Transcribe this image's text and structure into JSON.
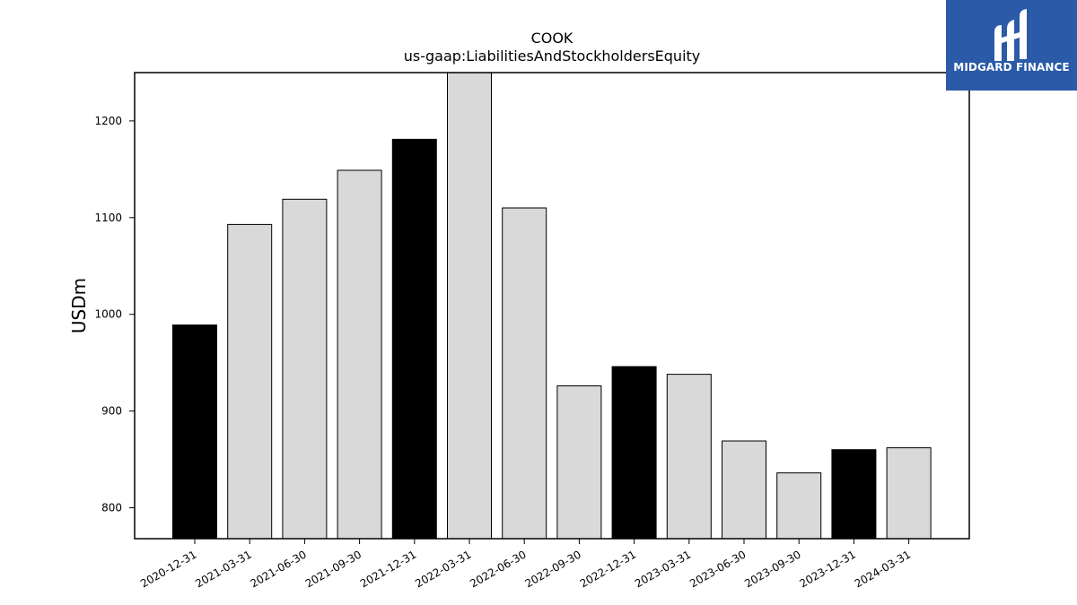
{
  "logo": {
    "text": "MIDGARD FINANCE",
    "background_color": "#2b5aa8",
    "icon": "midgard-logo-icon"
  },
  "chart_data": {
    "type": "bar",
    "title": "COOK",
    "subtitle": "us-gaap:LiabilitiesAndStockholdersEquity",
    "xlabel": "",
    "ylabel": "USDm",
    "ylim": [
      768,
      1250
    ],
    "yticks": [
      800,
      900,
      1000,
      1100,
      1200
    ],
    "ytick_labels": [
      "800",
      "900",
      "1000",
      "1100",
      "1200"
    ],
    "grid": false,
    "legend": "none",
    "categories": [
      "2020-12-31",
      "2021-03-31",
      "2021-06-30",
      "2021-09-30",
      "2021-12-31",
      "2022-03-31",
      "2022-06-30",
      "2022-09-30",
      "2022-12-31",
      "2023-03-31",
      "2023-06-30",
      "2023-09-30",
      "2023-12-31",
      "2024-03-31"
    ],
    "values": [
      989,
      1093,
      1119,
      1149,
      1181,
      1255,
      1110,
      926,
      946,
      938,
      869,
      836,
      860,
      862
    ],
    "bar_colors": [
      "#000000",
      "#d9d9d9",
      "#d9d9d9",
      "#d9d9d9",
      "#000000",
      "#d9d9d9",
      "#d9d9d9",
      "#d9d9d9",
      "#000000",
      "#d9d9d9",
      "#d9d9d9",
      "#d9d9d9",
      "#000000",
      "#d9d9d9"
    ],
    "bar_edge_color": "#000000"
  }
}
